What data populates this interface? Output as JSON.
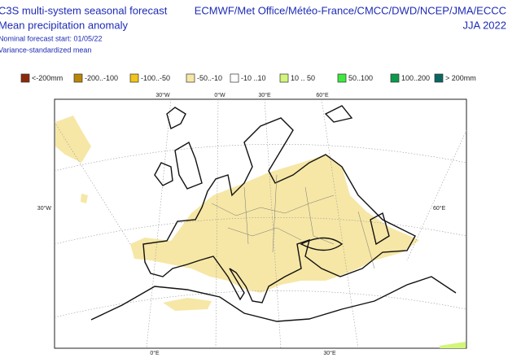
{
  "header": {
    "title": "C3S multi-system seasonal forecast",
    "subtitle": "Mean precipitation anomaly",
    "start": "Nominal forecast start: 01/05/22",
    "method": "Variance-standardized mean",
    "centres": "ECMWF/Met Office/Météo-France/CMCC/DWD/NCEP/JMA/ECCC",
    "season": "JJA 2022"
  },
  "legend": [
    {
      "label": "<-200mm",
      "color": "#8b2a0a"
    },
    {
      "label": "-200..-100",
      "color": "#b8860b"
    },
    {
      "label": "-100..-50",
      "color": "#f0c419"
    },
    {
      "label": "-50..-10",
      "color": "#f6e7a6"
    },
    {
      "label": "-10 ..10",
      "color": "#ffffff"
    },
    {
      "label": "10 .. 50",
      "color": "#d2f57a"
    },
    {
      "label": "50..100",
      "color": "#3ee83e"
    },
    {
      "label": "100..200",
      "color": "#0b9a4a"
    },
    {
      "label": "> 200mm",
      "color": "#0a6660"
    }
  ],
  "graticule": {
    "top": [
      "30°W",
      "0°W",
      "30°E",
      "60°E"
    ],
    "left": "30°W",
    "right": "60°E",
    "bottom": [
      "0°E",
      "30°E"
    ]
  }
}
